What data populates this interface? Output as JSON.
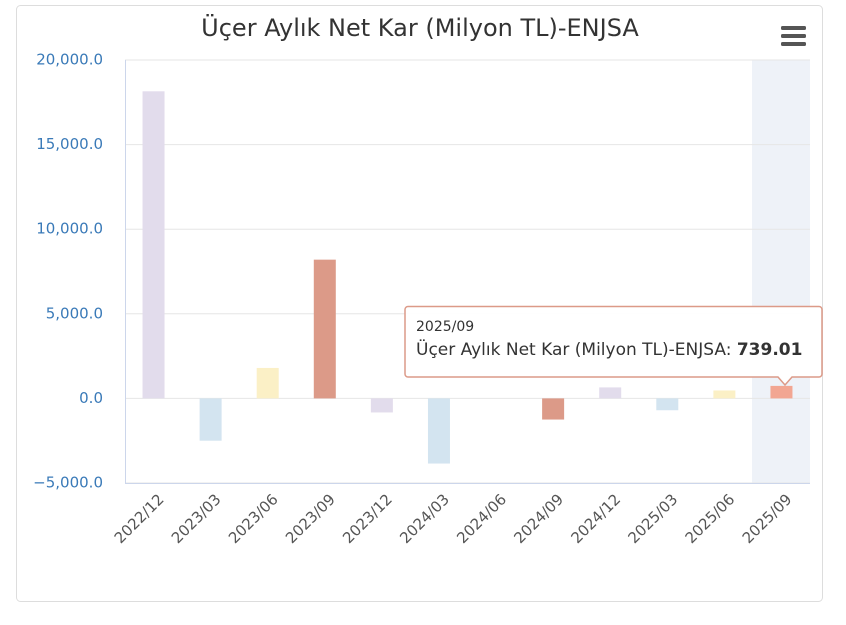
{
  "chart_data": {
    "type": "bar",
    "title": "Üçer Aylık Net Kar (Milyon TL)-ENJSA",
    "categories": [
      "2022/12",
      "2023/03",
      "2023/06",
      "2023/09",
      "2023/12",
      "2024/03",
      "2024/06",
      "2024/09",
      "2024/12",
      "2025/03",
      "2025/06",
      "2025/09"
    ],
    "series": [
      {
        "name": "Üçer Aylık Net Kar (Milyon TL)-ENJSA",
        "values": [
          18150,
          -2500,
          1800,
          8200,
          -830,
          -3850,
          0,
          -1250,
          650,
          -700,
          470,
          739.01
        ],
        "colors": [
          "#e2dcec",
          "#d3e4f0",
          "#fbf0c6",
          "#dc9a88",
          "#e2dcec",
          "#d3e4f0",
          "#fbf0c6",
          "#dc9a88",
          "#e2dcec",
          "#d3e4f0",
          "#fbf0c6",
          "#f2a692"
        ]
      }
    ],
    "ylim": [
      -5000,
      20000
    ],
    "yticks": [
      {
        "value": -5000,
        "label": "−5,000.0"
      },
      {
        "value": 0,
        "label": "0.0"
      },
      {
        "value": 5000,
        "label": "5,000.0"
      },
      {
        "value": 10000,
        "label": "10,000.0"
      },
      {
        "value": 15000,
        "label": "15,000.0"
      },
      {
        "value": 20000,
        "label": "20,000.0"
      }
    ],
    "grid": true,
    "tooltip": {
      "category": "2025/09",
      "label": "Üçer Aylık Net Kar (Milyon TL)-ENJSA:",
      "value": "739.01"
    }
  }
}
